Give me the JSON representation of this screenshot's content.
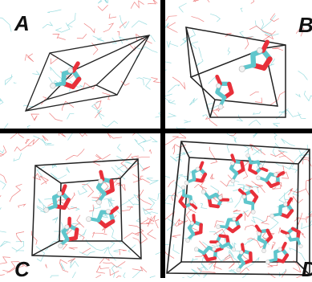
{
  "panels": [
    {
      "id": "A",
      "label": "A",
      "molecules": 1
    },
    {
      "id": "B",
      "label": "B",
      "molecules": 2
    },
    {
      "id": "C",
      "label": "C",
      "molecules": 4
    },
    {
      "id": "D",
      "label": "D",
      "molecules": 16
    }
  ],
  "colors": {
    "carbon": "#5fc6cc",
    "oxygen": "#e8303a",
    "hydrogen": "#f2f2f2",
    "solvent_cyan": "#7ad2d6",
    "solvent_red": "#e85a5a",
    "cell_edge": "#222222",
    "divider": "#000000"
  }
}
